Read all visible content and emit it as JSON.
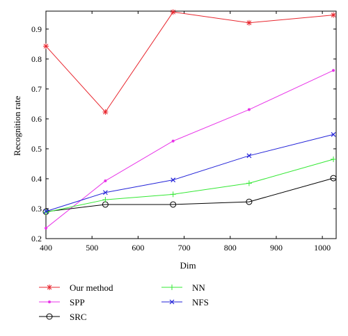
{
  "chart_data": {
    "type": "line",
    "title": "",
    "xlabel": "Dim",
    "ylabel": "Recognition rate",
    "xlim": [
      400,
      1030
    ],
    "ylim": [
      0.2,
      0.96
    ],
    "x_ticks": [
      400,
      500,
      600,
      700,
      800,
      900,
      1000
    ],
    "y_ticks": [
      0.2,
      0.3,
      0.4,
      0.5,
      0.6,
      0.7,
      0.8,
      0.9
    ],
    "x": [
      400,
      529,
      676,
      841,
      1024
    ],
    "grid": false,
    "legend_position": "bottom",
    "series": [
      {
        "name": "Our method",
        "color": "#e8262e",
        "marker": "star",
        "values": [
          0.843,
          0.623,
          0.957,
          0.921,
          0.947
        ]
      },
      {
        "name": "SPP",
        "color": "#e833e8",
        "marker": "dot",
        "values": [
          0.235,
          0.393,
          0.526,
          0.631,
          0.762
        ]
      },
      {
        "name": "SRC",
        "color": "#000000",
        "marker": "circle",
        "values": [
          0.29,
          0.314,
          0.314,
          0.323,
          0.402
        ]
      },
      {
        "name": "NN",
        "color": "#33e833",
        "marker": "plus",
        "values": [
          0.288,
          0.33,
          0.348,
          0.385,
          0.465
        ]
      },
      {
        "name": "NFS",
        "color": "#2323d8",
        "marker": "x",
        "values": [
          0.291,
          0.354,
          0.396,
          0.477,
          0.548
        ]
      }
    ]
  }
}
